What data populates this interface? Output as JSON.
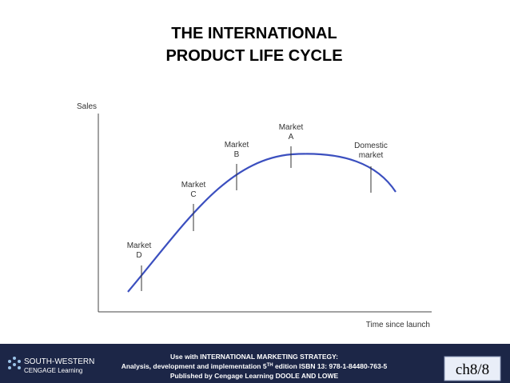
{
  "title": [
    "THE INTERNATIONAL",
    "PRODUCT LIFE CYCLE"
  ],
  "diagram": {
    "y_axis_label": "Sales",
    "x_axis_label": "Time since launch",
    "markers": [
      {
        "lines": [
          "Market",
          "D"
        ]
      },
      {
        "lines": [
          "Market",
          "C"
        ]
      },
      {
        "lines": [
          "Market",
          "B"
        ]
      },
      {
        "lines": [
          "Market",
          "A"
        ]
      },
      {
        "lines": [
          "Domestic",
          "market"
        ]
      }
    ]
  },
  "footer": {
    "logo": [
      "SOUTH-WESTERN",
      "CENGAGE Learning"
    ],
    "line1": "Use with INTERNATIONAL MARKETING STRATEGY:",
    "line2_before": "Analysis, development and implementation 5",
    "line2_sup": "TH",
    "line2_after": " edition   ISBN 13: 978-1-84480-763-5",
    "line3": "Published by Cengage Learning   DOOLE AND LOWE",
    "page": "ch8/8"
  }
}
